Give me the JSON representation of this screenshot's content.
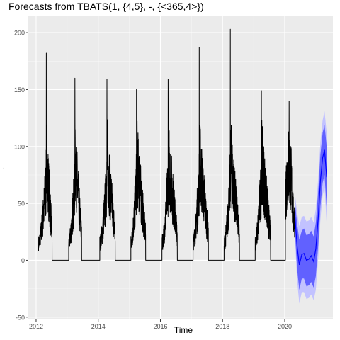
{
  "chart_data": {
    "type": "line",
    "title": "Forecasts from TBATS(1, {4,5}, -, {<365,4>})",
    "xlabel": "Time",
    "ylabel": ".",
    "xlim": [
      2011.75,
      2021.55
    ],
    "ylim": [
      -52,
      215
    ],
    "xticks": [
      2012,
      2014,
      2016,
      2018,
      2020
    ],
    "yticks": [
      -50,
      0,
      50,
      100,
      150,
      200
    ],
    "grid": true,
    "colors": {
      "panel": "#ebebeb",
      "grid_major": "#ffffff",
      "history": "#000000",
      "forecast": "#0000ff",
      "pi_80": "#5050ff",
      "pi_95": "#c2c2ff"
    },
    "history": {
      "season_peaks": [
        {
          "start": 2012.08,
          "peak_time": 2012.33,
          "peak": 182,
          "end": 2012.52
        },
        {
          "start": 2013.05,
          "peak_time": 2013.25,
          "peak": 160,
          "end": 2013.47
        },
        {
          "start": 2014.05,
          "peak_time": 2014.28,
          "peak": 159,
          "end": 2014.55
        },
        {
          "start": 2015.05,
          "peak_time": 2015.23,
          "peak": 150,
          "end": 2015.53
        },
        {
          "start": 2016.05,
          "peak_time": 2016.25,
          "peak": 159,
          "end": 2016.55
        },
        {
          "start": 2017.05,
          "peak_time": 2017.25,
          "peak": 187,
          "end": 2017.55
        },
        {
          "start": 2018.05,
          "peak_time": 2018.25,
          "peak": 203,
          "end": 2018.55
        },
        {
          "start": 2019.05,
          "peak_time": 2019.25,
          "peak": 149,
          "end": 2019.55
        }
      ],
      "final_start": 2020.02,
      "final_peak": 140,
      "final_end_time": 2020.33,
      "final_end_value": 36
    },
    "forecast": {
      "x": [
        2020.33,
        2020.4,
        2020.47,
        2020.55,
        2020.62,
        2020.7,
        2020.78,
        2020.85,
        2020.93,
        2021.0,
        2021.08,
        2021.15,
        2021.22,
        2021.28,
        2021.35
      ],
      "mean": [
        38,
        12,
        -4,
        5,
        6,
        0,
        1,
        4,
        -1,
        10,
        38,
        70,
        90,
        97,
        73
      ],
      "lo80": [
        25,
        -8,
        -26,
        -16,
        -16,
        -23,
        -22,
        -19,
        -24,
        -14,
        14,
        47,
        68,
        75,
        45
      ],
      "hi80": [
        51,
        32,
        18,
        26,
        28,
        22,
        23,
        26,
        21,
        33,
        62,
        93,
        112,
        119,
        100
      ],
      "lo95": [
        18,
        -18,
        -38,
        -28,
        -28,
        -34,
        -33,
        -30,
        -35,
        -26,
        3,
        36,
        57,
        64,
        32
      ],
      "hi95": [
        58,
        42,
        30,
        38,
        39,
        34,
        35,
        38,
        33,
        45,
        73,
        104,
        123,
        131,
        112
      ]
    }
  }
}
